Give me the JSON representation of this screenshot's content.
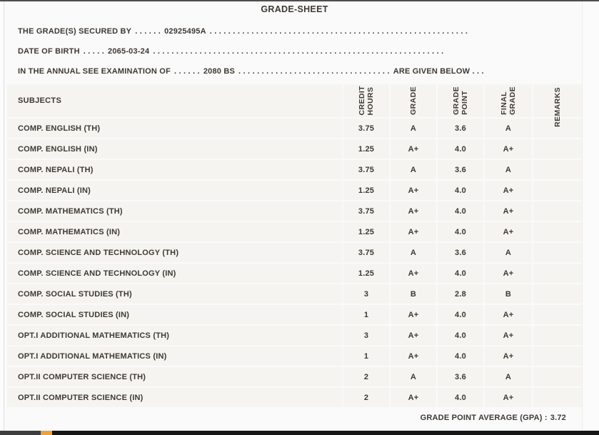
{
  "title": "GRADE-SHEET",
  "bio": {
    "line1": {
      "label": "THE GRADE(S) SECURED BY",
      "dots_before": ". . . . . .",
      "value": "02925495A",
      "dots_after": ". . . . . . . . . . . . . . . . . . . . . . . . . . . . . . . . . . . . . . . . . . . . . . . . . . . . . . . ."
    },
    "line2": {
      "label": "DATE OF BIRTH",
      "dots_before": ". . . . .",
      "value": "2065-03-24",
      "dots_after": ". . . . . . . . . . . . . . . . . . . . . . . . . . . . . . . . . . . . . . . . . . . . . . . . . . . . . . . . . . . . . . ."
    },
    "line3": {
      "label": "IN THE ANNUAL SEE EXAMINATION OF",
      "dots_before": ". . . . . .",
      "value": "2080 BS",
      "dots_after": ". . . . . . . . . . . . . . . . . . . . . . . . . . . . . . . . .",
      "suffix": "ARE GIVEN BELOW . . ."
    }
  },
  "table": {
    "subjects_header": "SUBJECTS",
    "columns": [
      "CREDIT\nHOURS",
      "GRADE",
      "GRADE\nPOINT",
      "FINAL\nGRADE",
      "REMARKS"
    ],
    "rows": [
      {
        "subject": "COMP. ENGLISH (TH)",
        "credit_hours": "3.75",
        "grade": "A",
        "grade_point": "3.6",
        "final_grade": "A",
        "remarks": ""
      },
      {
        "subject": "COMP. ENGLISH (IN)",
        "credit_hours": "1.25",
        "grade": "A+",
        "grade_point": "4.0",
        "final_grade": "A+",
        "remarks": ""
      },
      {
        "subject": "COMP. NEPALI (TH)",
        "credit_hours": "3.75",
        "grade": "A",
        "grade_point": "3.6",
        "final_grade": "A",
        "remarks": ""
      },
      {
        "subject": "COMP. NEPALI (IN)",
        "credit_hours": "1.25",
        "grade": "A+",
        "grade_point": "4.0",
        "final_grade": "A+",
        "remarks": ""
      },
      {
        "subject": "COMP. MATHEMATICS (TH)",
        "credit_hours": "3.75",
        "grade": "A+",
        "grade_point": "4.0",
        "final_grade": "A+",
        "remarks": ""
      },
      {
        "subject": "COMP. MATHEMATICS (IN)",
        "credit_hours": "1.25",
        "grade": "A+",
        "grade_point": "4.0",
        "final_grade": "A+",
        "remarks": ""
      },
      {
        "subject": "COMP. SCIENCE AND TECHNOLOGY (TH)",
        "credit_hours": "3.75",
        "grade": "A",
        "grade_point": "3.6",
        "final_grade": "A",
        "remarks": ""
      },
      {
        "subject": "COMP. SCIENCE AND TECHNOLOGY (IN)",
        "credit_hours": "1.25",
        "grade": "A+",
        "grade_point": "4.0",
        "final_grade": "A+",
        "remarks": ""
      },
      {
        "subject": "COMP. SOCIAL STUDIES (TH)",
        "credit_hours": "3",
        "grade": "B",
        "grade_point": "2.8",
        "final_grade": "B",
        "remarks": ""
      },
      {
        "subject": "COMP. SOCIAL STUDIES (IN)",
        "credit_hours": "1",
        "grade": "A+",
        "grade_point": "4.0",
        "final_grade": "A+",
        "remarks": ""
      },
      {
        "subject": "OPT.I ADDITIONAL MATHEMATICS (TH)",
        "credit_hours": "3",
        "grade": "A+",
        "grade_point": "4.0",
        "final_grade": "A+",
        "remarks": ""
      },
      {
        "subject": "OPT.I ADDITIONAL MATHEMATICS (IN)",
        "credit_hours": "1",
        "grade": "A+",
        "grade_point": "4.0",
        "final_grade": "A+",
        "remarks": ""
      },
      {
        "subject": "OPT.II COMPUTER SCIENCE (TH)",
        "credit_hours": "2",
        "grade": "A",
        "grade_point": "3.6",
        "final_grade": "A",
        "remarks": ""
      },
      {
        "subject": "OPT.II COMPUTER SCIENCE (IN)",
        "credit_hours": "2",
        "grade": "A+",
        "grade_point": "4.0",
        "final_grade": "A+",
        "remarks": ""
      }
    ]
  },
  "footer": {
    "gpa_label": "GRADE POINT AVERAGE (GPA) :",
    "gpa_value": "3.72"
  },
  "colors": {
    "text": "#3e3933",
    "row_background": "#f5f4f1",
    "page_background": "#fafafa",
    "bottom_bar": "#171717",
    "bottom_bar_accent": "#efa23b"
  }
}
